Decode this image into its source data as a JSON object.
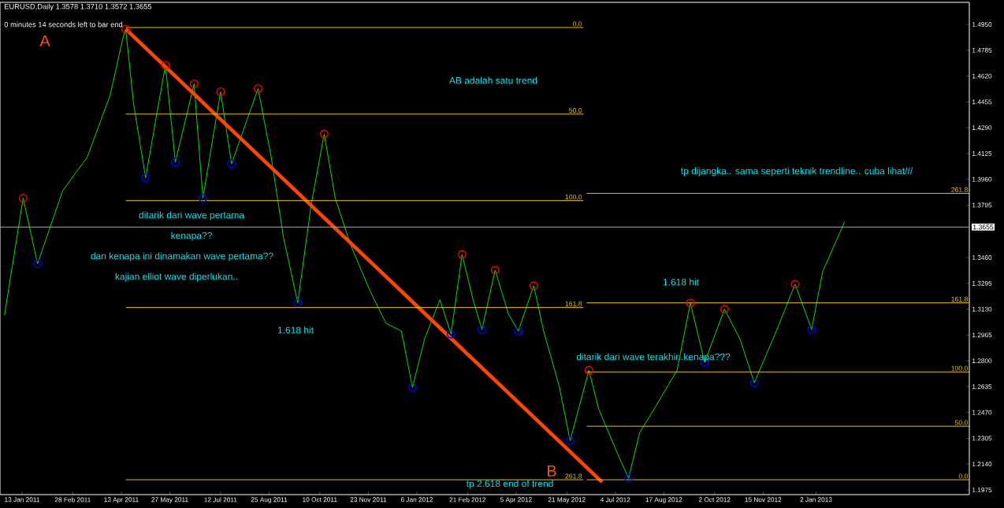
{
  "chart_data": {
    "type": "line",
    "title": "EURUSD,Daily  1.3578 1.3710 1.3572 1.3655",
    "xlim": [
      "2010-12-24",
      "2013-05-21"
    ],
    "ylim": [
      1.1945,
      1.5091
    ],
    "xticks": [
      {
        "value": "2011-01-13",
        "label": "13 Jan 2011"
      },
      {
        "value": "2011-02-28",
        "label": "28 Feb 2011"
      },
      {
        "value": "2011-04-13",
        "label": "13 Apr 2011"
      },
      {
        "value": "2011-05-27",
        "label": "27 May 2011"
      },
      {
        "value": "2011-07-12",
        "label": "12 Jul 2011"
      },
      {
        "value": "2011-08-25",
        "label": "25 Aug 2011"
      },
      {
        "value": "2011-10-10",
        "label": "10 Oct 2011"
      },
      {
        "value": "2011-11-23",
        "label": "23 Nov 2011"
      },
      {
        "value": "2012-01-06",
        "label": "6 Jan 2012"
      },
      {
        "value": "2012-02-21",
        "label": "21 Feb 2012"
      },
      {
        "value": "2012-04-05",
        "label": "5 Apr 2012"
      },
      {
        "value": "2012-05-21",
        "label": "21 May 2012"
      },
      {
        "value": "2012-07-04",
        "label": "4 Jul 2012"
      },
      {
        "value": "2012-08-17",
        "label": "17 Aug 2012"
      },
      {
        "value": "2012-10-02",
        "label": "2 Oct 2012"
      },
      {
        "value": "2012-11-15",
        "label": "15 Nov 2012"
      },
      {
        "value": "2013-01-02",
        "label": "2 Jan 2013"
      }
    ],
    "yticks": [
      {
        "value": 1.495,
        "label": "1.4950"
      },
      {
        "value": 1.4785,
        "label": "1.4785"
      },
      {
        "value": 1.462,
        "label": "1.4620"
      },
      {
        "value": 1.4455,
        "label": "1.4455"
      },
      {
        "value": 1.429,
        "label": "1.4290"
      },
      {
        "value": 1.4125,
        "label": "1.4125"
      },
      {
        "value": 1.396,
        "label": "1.3960"
      },
      {
        "value": 1.3795,
        "label": "1.3795"
      },
      {
        "value": 1.346,
        "label": "1.3460"
      },
      {
        "value": 1.3295,
        "label": "1.3295"
      },
      {
        "value": 1.313,
        "label": "1.3130"
      },
      {
        "value": 1.2965,
        "label": "1.2965"
      },
      {
        "value": 1.28,
        "label": "1.2800"
      },
      {
        "value": 1.2635,
        "label": "1.2635"
      },
      {
        "value": 1.247,
        "label": "1.2470"
      },
      {
        "value": 1.2305,
        "label": "1.2305"
      },
      {
        "value": 1.214,
        "label": "1.2140"
      },
      {
        "value": 1.1975,
        "label": "1.1975"
      }
    ],
    "series": [
      {
        "color": "#00e000",
        "x": [
          "2010-12-28",
          "2011-01-14",
          "2011-01-27",
          "2011-02-19",
          "2011-03-13",
          "2011-04-03",
          "2011-04-14",
          "2011-04-17",
          "2011-04-24",
          "2011-05-05",
          "2011-05-23",
          "2011-06-01",
          "2011-06-18",
          "2011-06-26",
          "2011-07-12",
          "2011-07-22",
          "2011-08-15",
          "2011-08-27",
          "2011-09-07",
          "2011-09-20",
          "2011-10-02",
          "2011-10-14",
          "2011-10-24",
          "2011-11-07",
          "2011-11-25",
          "2011-12-09",
          "2011-12-23",
          "2012-01-02",
          "2012-01-13",
          "2012-01-27",
          "2012-02-06",
          "2012-02-16",
          "2012-02-26",
          "2012-03-05",
          "2012-03-17",
          "2012-03-29",
          "2012-04-07",
          "2012-04-21",
          "2012-04-30",
          "2012-05-14",
          "2012-05-24",
          "2012-06-10",
          "2012-06-19",
          "2012-07-07",
          "2012-07-16",
          "2012-07-26",
          "2012-08-08",
          "2012-08-29",
          "2012-09-10",
          "2012-09-23",
          "2012-10-11",
          "2012-10-25",
          "2012-11-07",
          "2012-11-27",
          "2012-12-14",
          "2012-12-29",
          "2013-01-08",
          "2013-01-28"
        ],
        "values": [
          1.309,
          1.384,
          1.342,
          1.389,
          1.41,
          1.45,
          1.485,
          1.492,
          1.445,
          1.397,
          1.469,
          1.407,
          1.457,
          1.384,
          1.452,
          1.406,
          1.454,
          1.41,
          1.359,
          1.317,
          1.379,
          1.425,
          1.384,
          1.354,
          1.324,
          1.304,
          1.299,
          1.263,
          1.294,
          1.319,
          1.297,
          1.348,
          1.319,
          1.3,
          1.338,
          1.31,
          1.299,
          1.328,
          1.299,
          1.264,
          1.229,
          1.274,
          1.249,
          1.219,
          1.205,
          1.234,
          1.249,
          1.274,
          1.317,
          1.279,
          1.313,
          1.294,
          1.266,
          1.299,
          1.329,
          1.3,
          1.337,
          1.369
        ]
      },
      {
        "type": "line",
        "color": "#ff4500",
        "x": [
          "2011-04-17",
          "2012-06-22"
        ],
        "values": [
          1.492,
          1.2025
        ]
      },
      {
        "type": "line",
        "name": "0.0",
        "color": "#e6c200",
        "x": [
          "2011-04-17",
          "2012-06-05"
        ],
        "values": [
          1.493,
          1.493
        ]
      },
      {
        "type": "line",
        "name": "50.0",
        "color": "#e6c200",
        "x": [
          "2011-04-17",
          "2012-06-05"
        ],
        "values": [
          1.4377,
          1.4377
        ]
      },
      {
        "type": "line",
        "name": "100.0",
        "color": "#e6c200",
        "x": [
          "2011-04-17",
          "2012-06-05"
        ],
        "values": [
          1.3824,
          1.3824
        ]
      },
      {
        "type": "line",
        "name": "161.8",
        "color": "#e6c200",
        "x": [
          "2011-04-17",
          "2012-06-05"
        ],
        "values": [
          1.3141,
          1.3141
        ]
      },
      {
        "type": "line",
        "name": "261.8",
        "color": "#e6c200",
        "x": [
          "2011-04-17",
          "2012-06-05"
        ],
        "values": [
          1.204,
          1.204
        ]
      },
      {
        "type": "line",
        "name": "0.0",
        "color": "#e6c200",
        "x": [
          "2012-06-08",
          "2013-05-21"
        ],
        "values": [
          1.204,
          1.204
        ]
      },
      {
        "type": "line",
        "name": "50.0",
        "color": "#e6c200",
        "x": [
          "2012-06-08",
          "2013-05-21"
        ],
        "values": [
          1.2382,
          1.2382
        ]
      },
      {
        "type": "line",
        "name": "100.0",
        "color": "#e6c200",
        "x": [
          "2012-06-08",
          "2013-05-21"
        ],
        "values": [
          1.2729,
          1.2729
        ]
      },
      {
        "type": "line",
        "name": "161.8",
        "color": "#e6c200",
        "x": [
          "2012-06-08",
          "2013-05-21"
        ],
        "values": [
          1.3171,
          1.3171
        ]
      },
      {
        "type": "line",
        "name": "261.8",
        "color": "#e6c200",
        "x": [
          "2012-06-08",
          "2013-05-21"
        ],
        "values": [
          1.387,
          1.387
        ]
      },
      {
        "type": "scatter",
        "marker": "circle",
        "color": "#ff0000",
        "x": [
          "2011-01-14",
          "2011-04-17",
          "2011-05-23",
          "2011-06-18",
          "2011-07-12",
          "2011-08-15",
          "2011-10-14",
          "2012-02-16",
          "2012-03-17",
          "2012-04-21",
          "2012-06-10",
          "2012-09-10",
          "2012-10-11",
          "2012-12-14"
        ],
        "values": [
          1.384,
          1.492,
          1.469,
          1.457,
          1.452,
          1.454,
          1.425,
          1.348,
          1.338,
          1.328,
          1.274,
          1.317,
          1.313,
          1.329
        ]
      },
      {
        "type": "scatter",
        "marker": "circle",
        "color": "#0000ff",
        "x": [
          "2011-01-27",
          "2011-05-05",
          "2011-06-01",
          "2011-06-26",
          "2011-07-22",
          "2011-09-20",
          "2012-01-02",
          "2012-02-06",
          "2012-03-05",
          "2012-04-07",
          "2012-05-24",
          "2012-07-16",
          "2012-09-23",
          "2012-11-07",
          "2012-12-29"
        ],
        "values": [
          1.342,
          1.397,
          1.407,
          1.384,
          1.406,
          1.317,
          1.263,
          1.297,
          1.3,
          1.299,
          1.229,
          1.205,
          1.279,
          1.266,
          1.3
        ]
      }
    ],
    "ref_lines": [
      {
        "axis": "y",
        "value": 1.3655,
        "label": "1.3655",
        "color": "#a0a8b0"
      }
    ],
    "annotations": [
      "AB adalah satu trend",
      "ditarik dari wave pertama",
      "kenapa??",
      "dan kenapa ini dinamakan wave pertama??",
      "kajian elliot wave diperlukan..",
      "1.618 hit",
      "1.618 hit",
      "ditarik dari wave terakhir..kenapa???",
      "tp dijangka.. sama seperti teknik trendline.. cuba lihat///",
      "tp 2.618 end of trend",
      "A",
      "B",
      "0 minutes 14 seconds left to bar end"
    ]
  }
}
